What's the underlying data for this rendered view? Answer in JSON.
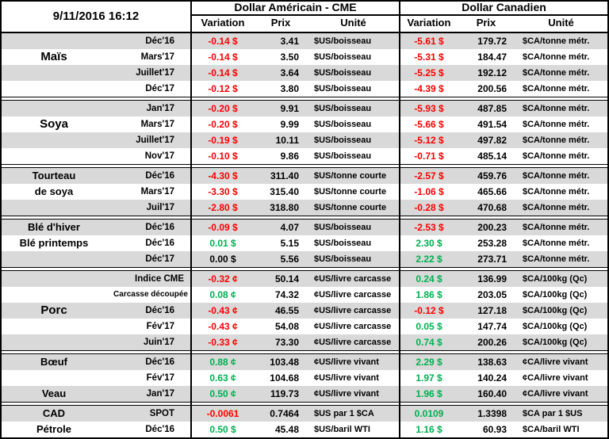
{
  "header": {
    "timestamp": "9/11/2016 16:12",
    "us_title": "Dollar Américain - CME",
    "ca_title": "Dollar Canadien",
    "col_variation": "Variation",
    "col_prix": "Prix",
    "col_unite": "Unité"
  },
  "colors": {
    "negative": "#ff0000",
    "positive": "#00b050",
    "row_shade": "#d9d9d9",
    "border": "#000000"
  },
  "sections": [
    {
      "id": "mais",
      "rows": [
        {
          "label": "",
          "month": "Déc'16",
          "us_var": "-0.14 $",
          "us_var_color": "red",
          "us_prix": "3.41",
          "us_unite": "$US/boisseau",
          "ca_var": "-5.61 $",
          "ca_var_color": "red",
          "ca_prix": "179.72",
          "ca_unite": "$CA/tonne métr."
        },
        {
          "label": "Maïs",
          "label_big": true,
          "month": "Mars'17",
          "us_var": "-0.14 $",
          "us_var_color": "red",
          "us_prix": "3.50",
          "us_unite": "$US/boisseau",
          "ca_var": "-5.31 $",
          "ca_var_color": "red",
          "ca_prix": "184.47",
          "ca_unite": "$CA/tonne métr."
        },
        {
          "label": "",
          "month": "Juillet'17",
          "us_var": "-0.14 $",
          "us_var_color": "red",
          "us_prix": "3.64",
          "us_unite": "$US/boisseau",
          "ca_var": "-5.25 $",
          "ca_var_color": "red",
          "ca_prix": "192.12",
          "ca_unite": "$CA/tonne métr."
        },
        {
          "label": "",
          "month": "Déc'17",
          "us_var": "-0.12 $",
          "us_var_color": "red",
          "us_prix": "3.80",
          "us_unite": "$US/boisseau",
          "ca_var": "-4.39 $",
          "ca_var_color": "red",
          "ca_prix": "200.56",
          "ca_unite": "$CA/tonne métr."
        }
      ]
    },
    {
      "id": "soya",
      "rows": [
        {
          "label": "",
          "month": "Jan'17",
          "us_var": "-0.20 $",
          "us_var_color": "red",
          "us_prix": "9.91",
          "us_unite": "$US/boisseau",
          "ca_var": "-5.93 $",
          "ca_var_color": "red",
          "ca_prix": "487.85",
          "ca_unite": "$CA/tonne métr."
        },
        {
          "label": "Soya",
          "label_big": true,
          "month": "Mars'17",
          "us_var": "-0.20 $",
          "us_var_color": "red",
          "us_prix": "9.99",
          "us_unite": "$US/boisseau",
          "ca_var": "-5.66 $",
          "ca_var_color": "red",
          "ca_prix": "491.54",
          "ca_unite": "$CA/tonne métr."
        },
        {
          "label": "",
          "month": "Juillet'17",
          "us_var": "-0.19 $",
          "us_var_color": "red",
          "us_prix": "10.11",
          "us_unite": "$US/boisseau",
          "ca_var": "-5.12 $",
          "ca_var_color": "red",
          "ca_prix": "497.82",
          "ca_unite": "$CA/tonne métr."
        },
        {
          "label": "",
          "month": "Nov'17",
          "us_var": "-0.10 $",
          "us_var_color": "red",
          "us_prix": "9.86",
          "us_unite": "$US/boisseau",
          "ca_var": "-0.71 $",
          "ca_var_color": "red",
          "ca_prix": "485.14",
          "ca_unite": "$CA/tonne métr."
        }
      ]
    },
    {
      "id": "tourteau-de-soya",
      "rows": [
        {
          "label": "Tourteau",
          "month": "Déc'16",
          "us_var": "-4.30 $",
          "us_var_color": "red",
          "us_prix": "311.40",
          "us_unite": "$US/tonne courte",
          "ca_var": "-2.57 $",
          "ca_var_color": "red",
          "ca_prix": "459.76",
          "ca_unite": "$CA/tonne métr."
        },
        {
          "label": "de soya",
          "month": "Mars'17",
          "us_var": "-3.30 $",
          "us_var_color": "red",
          "us_prix": "315.40",
          "us_unite": "$US/tonne courte",
          "ca_var": "-1.06 $",
          "ca_var_color": "red",
          "ca_prix": "465.66",
          "ca_unite": "$CA/tonne métr."
        },
        {
          "label": "",
          "month": "Juil'17",
          "us_var": "-2.80 $",
          "us_var_color": "red",
          "us_prix": "318.80",
          "us_unite": "$US/tonne courte",
          "ca_var": "-0.28 $",
          "ca_var_color": "red",
          "ca_prix": "470.68",
          "ca_unite": "$CA/tonne métr."
        }
      ]
    },
    {
      "id": "ble",
      "rows": [
        {
          "label": "Blé d'hiver",
          "month": "Déc'16",
          "us_var": "-0.09 $",
          "us_var_color": "red",
          "us_prix": "4.07",
          "us_unite": "$US/boisseau",
          "ca_var": "-2.53 $",
          "ca_var_color": "red",
          "ca_prix": "200.23",
          "ca_unite": "$CA/tonne métr."
        },
        {
          "label": "Blé printemps",
          "month": "Déc'16",
          "us_var": "0.01 $",
          "us_var_color": "green",
          "us_prix": "5.15",
          "us_unite": "$US/boisseau",
          "ca_var": "2.30 $",
          "ca_var_color": "green",
          "ca_prix": "253.28",
          "ca_unite": "$CA/tonne métr."
        },
        {
          "label": "",
          "month": "Déc'17",
          "us_var": "0.00 $",
          "us_var_color": "black",
          "us_prix": "5.56",
          "us_unite": "$US/boisseau",
          "ca_var": "2.22 $",
          "ca_var_color": "green",
          "ca_prix": "273.71",
          "ca_unite": "$CA/tonne métr."
        }
      ]
    },
    {
      "id": "porc",
      "rows": [
        {
          "label": "",
          "month": "Indice CME",
          "us_var": "-0.32 ¢",
          "us_var_color": "red",
          "us_prix": "50.14",
          "us_unite": "¢US/livre carcasse",
          "ca_var": "0.24 $",
          "ca_var_color": "green",
          "ca_prix": "136.99",
          "ca_unite": "$CA/100kg (Qc)"
        },
        {
          "label": "",
          "month": "Carcasse découpée",
          "us_var": "0.08 ¢",
          "us_var_color": "green",
          "us_prix": "74.32",
          "us_unite": "¢US/livre carcasse",
          "ca_var": "1.86 $",
          "ca_var_color": "green",
          "ca_prix": "203.05",
          "ca_unite": "$CA/100kg (Qc)"
        },
        {
          "label": "Porc",
          "label_big": true,
          "month": "Déc'16",
          "us_var": "-0.43 ¢",
          "us_var_color": "red",
          "us_prix": "46.55",
          "us_unite": "¢US/livre carcasse",
          "ca_var": "-0.12 $",
          "ca_var_color": "red",
          "ca_prix": "127.18",
          "ca_unite": "$CA/100kg (Qc)"
        },
        {
          "label": "",
          "month": "Fév'17",
          "us_var": "-0.43 ¢",
          "us_var_color": "red",
          "us_prix": "54.08",
          "us_unite": "¢US/livre carcasse",
          "ca_var": "0.05 $",
          "ca_var_color": "green",
          "ca_prix": "147.74",
          "ca_unite": "$CA/100kg (Qc)"
        },
        {
          "label": "",
          "month": "Juin'17",
          "us_var": "-0.33 ¢",
          "us_var_color": "red",
          "us_prix": "73.30",
          "us_unite": "¢US/livre carcasse",
          "ca_var": "0.74 $",
          "ca_var_color": "green",
          "ca_prix": "200.26",
          "ca_unite": "$CA/100kg (Qc)"
        }
      ]
    },
    {
      "id": "boeuf-veau",
      "rows": [
        {
          "label": "Bœuf",
          "month": "Déc'16",
          "us_var": "0.88 ¢",
          "us_var_color": "green",
          "us_prix": "103.48",
          "us_unite": "¢US/livre vivant",
          "ca_var": "2.29 $",
          "ca_var_color": "green",
          "ca_prix": "138.63",
          "ca_unite": "¢CA/livre vivant"
        },
        {
          "label": "",
          "month": "Fév'17",
          "us_var": "0.63 ¢",
          "us_var_color": "green",
          "us_prix": "104.68",
          "us_unite": "¢US/livre vivant",
          "ca_var": "1.97 $",
          "ca_var_color": "green",
          "ca_prix": "140.24",
          "ca_unite": "¢CA/livre vivant"
        },
        {
          "label": "Veau",
          "month": "Jan'17",
          "us_var": "0.50 ¢",
          "us_var_color": "green",
          "us_prix": "119.73",
          "us_unite": "¢US/livre vivant",
          "ca_var": "1.96 $",
          "ca_var_color": "green",
          "ca_prix": "160.40",
          "ca_unite": "¢CA/livre vivant"
        }
      ]
    },
    {
      "id": "cad-petrole",
      "rows": [
        {
          "label": "CAD",
          "month": "SPOT",
          "us_var": "-0.0061",
          "us_var_color": "red",
          "us_prix": "0.7464",
          "us_unite": "$US par 1 $CA",
          "ca_var": "0.0109",
          "ca_var_color": "green",
          "ca_prix": "1.3398",
          "ca_unite": "$CA par 1 $US"
        },
        {
          "label": "Pétrole",
          "month": "Déc'16",
          "us_var": "0.50 $",
          "us_var_color": "green",
          "us_prix": "45.48",
          "us_unite": "$US/baril WTI",
          "ca_var": "1.16 $",
          "ca_var_color": "green",
          "ca_prix": "60.93",
          "ca_unite": "$CA/baril WTI"
        }
      ]
    }
  ]
}
